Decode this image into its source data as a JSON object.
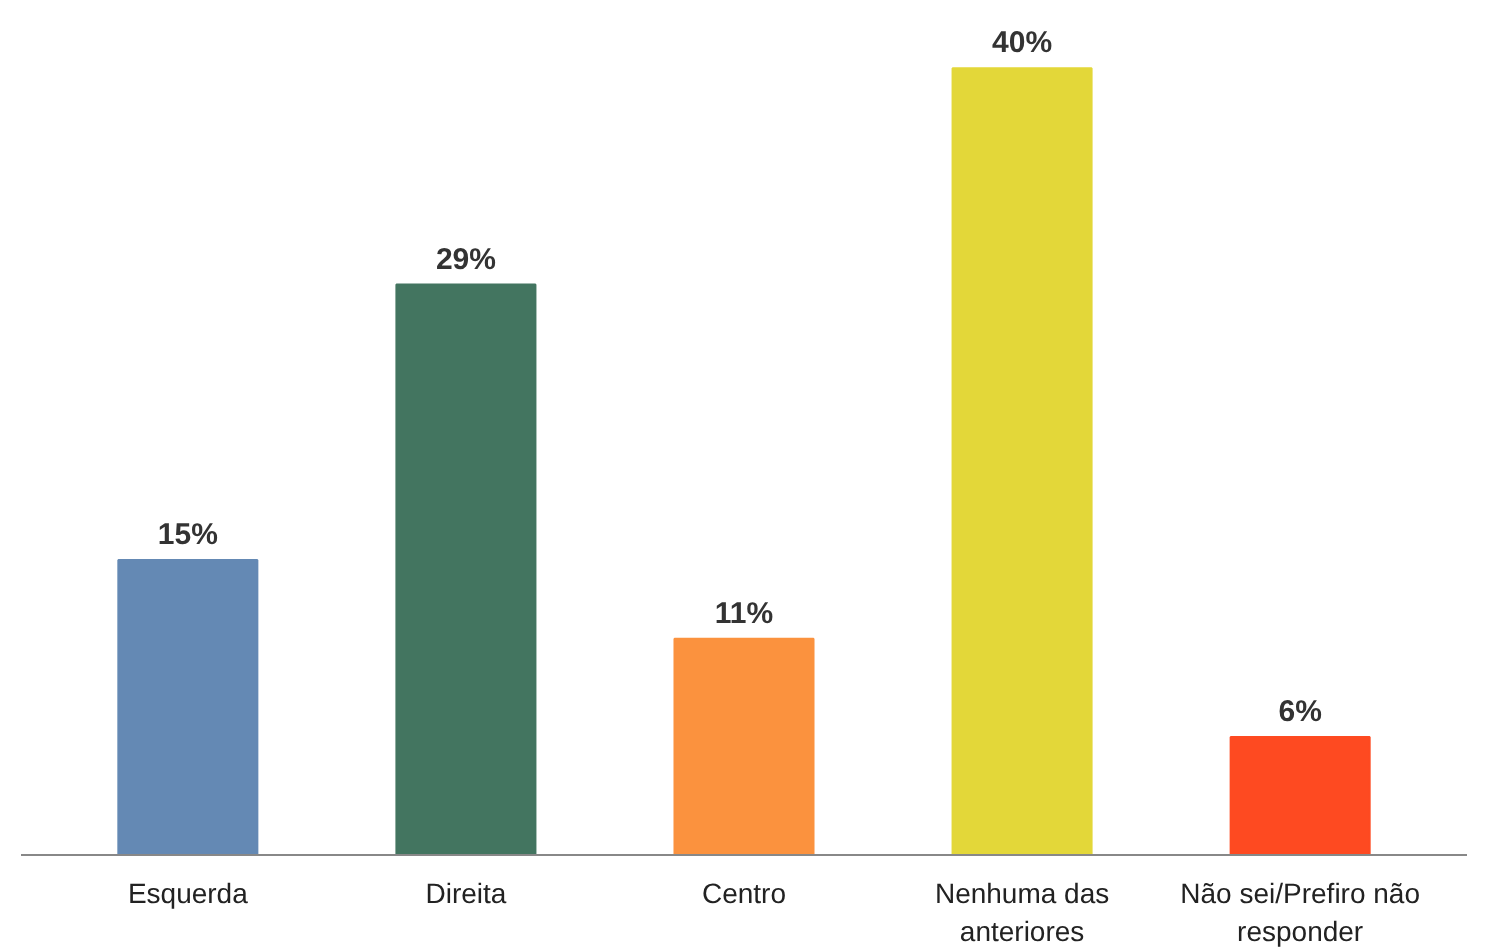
{
  "chart_data": {
    "type": "bar",
    "categories": [
      "Esquerda",
      "Direita",
      "Centro",
      "Nenhuma das anteriores",
      "Não sei/Prefiro não responder"
    ],
    "values": [
      15,
      29,
      11,
      40,
      6
    ],
    "colors": [
      "#6489b4",
      "#437560",
      "#fb923e",
      "#e3d739",
      "#fe4a21"
    ],
    "value_labels": [
      "15%",
      "29%",
      "11%",
      "40%",
      "6%"
    ]
  }
}
